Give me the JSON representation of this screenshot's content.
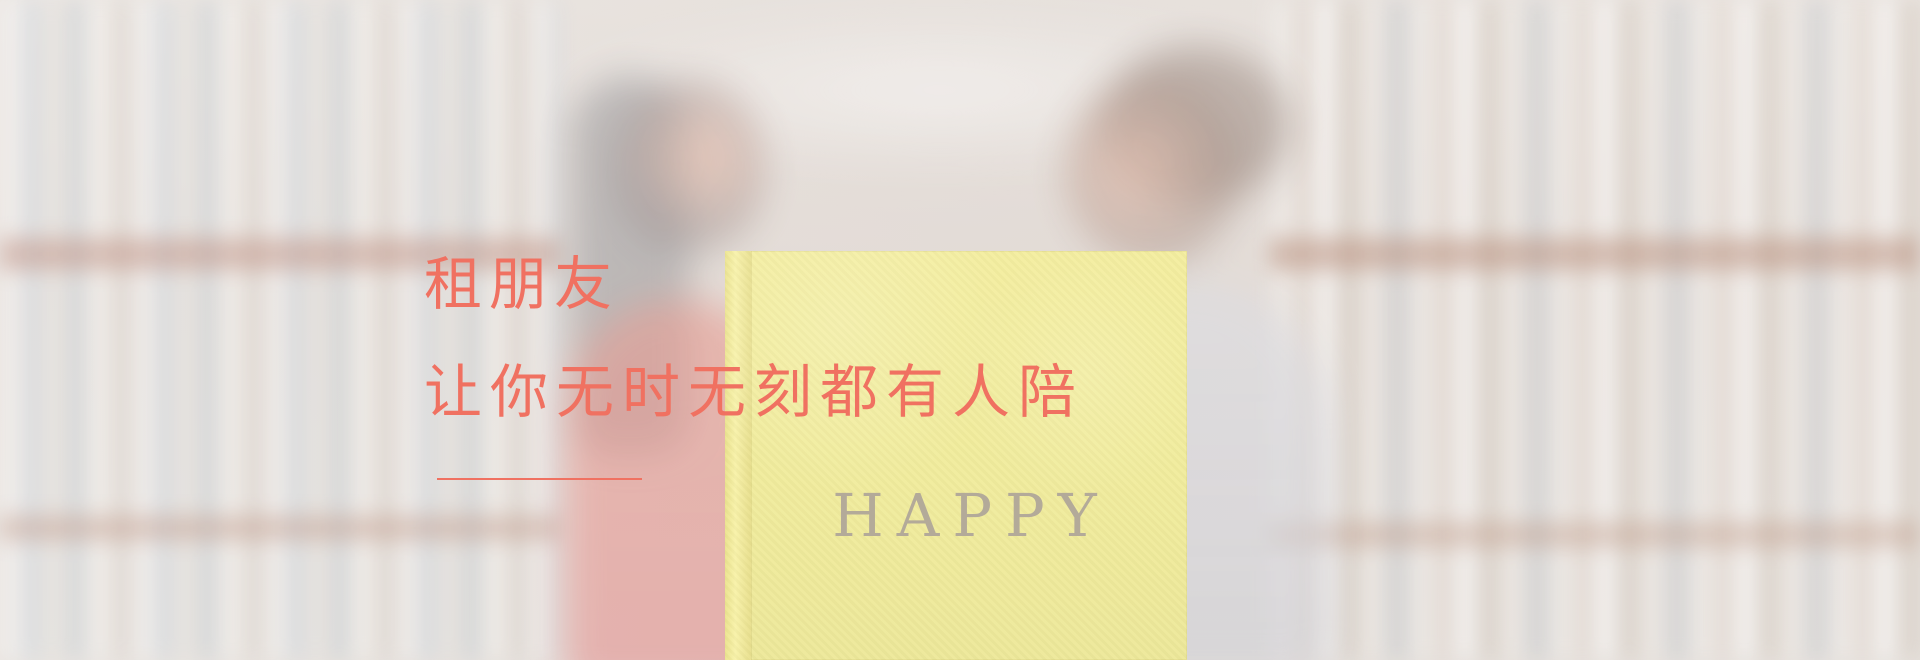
{
  "hero": {
    "title": "租朋友",
    "subtitle": "让你无时无刻都有人陪",
    "book_text": "HAPPY"
  },
  "colors": {
    "accent": "#f07161",
    "book": "#f1ec9d",
    "book_text": "#b3aa99"
  }
}
